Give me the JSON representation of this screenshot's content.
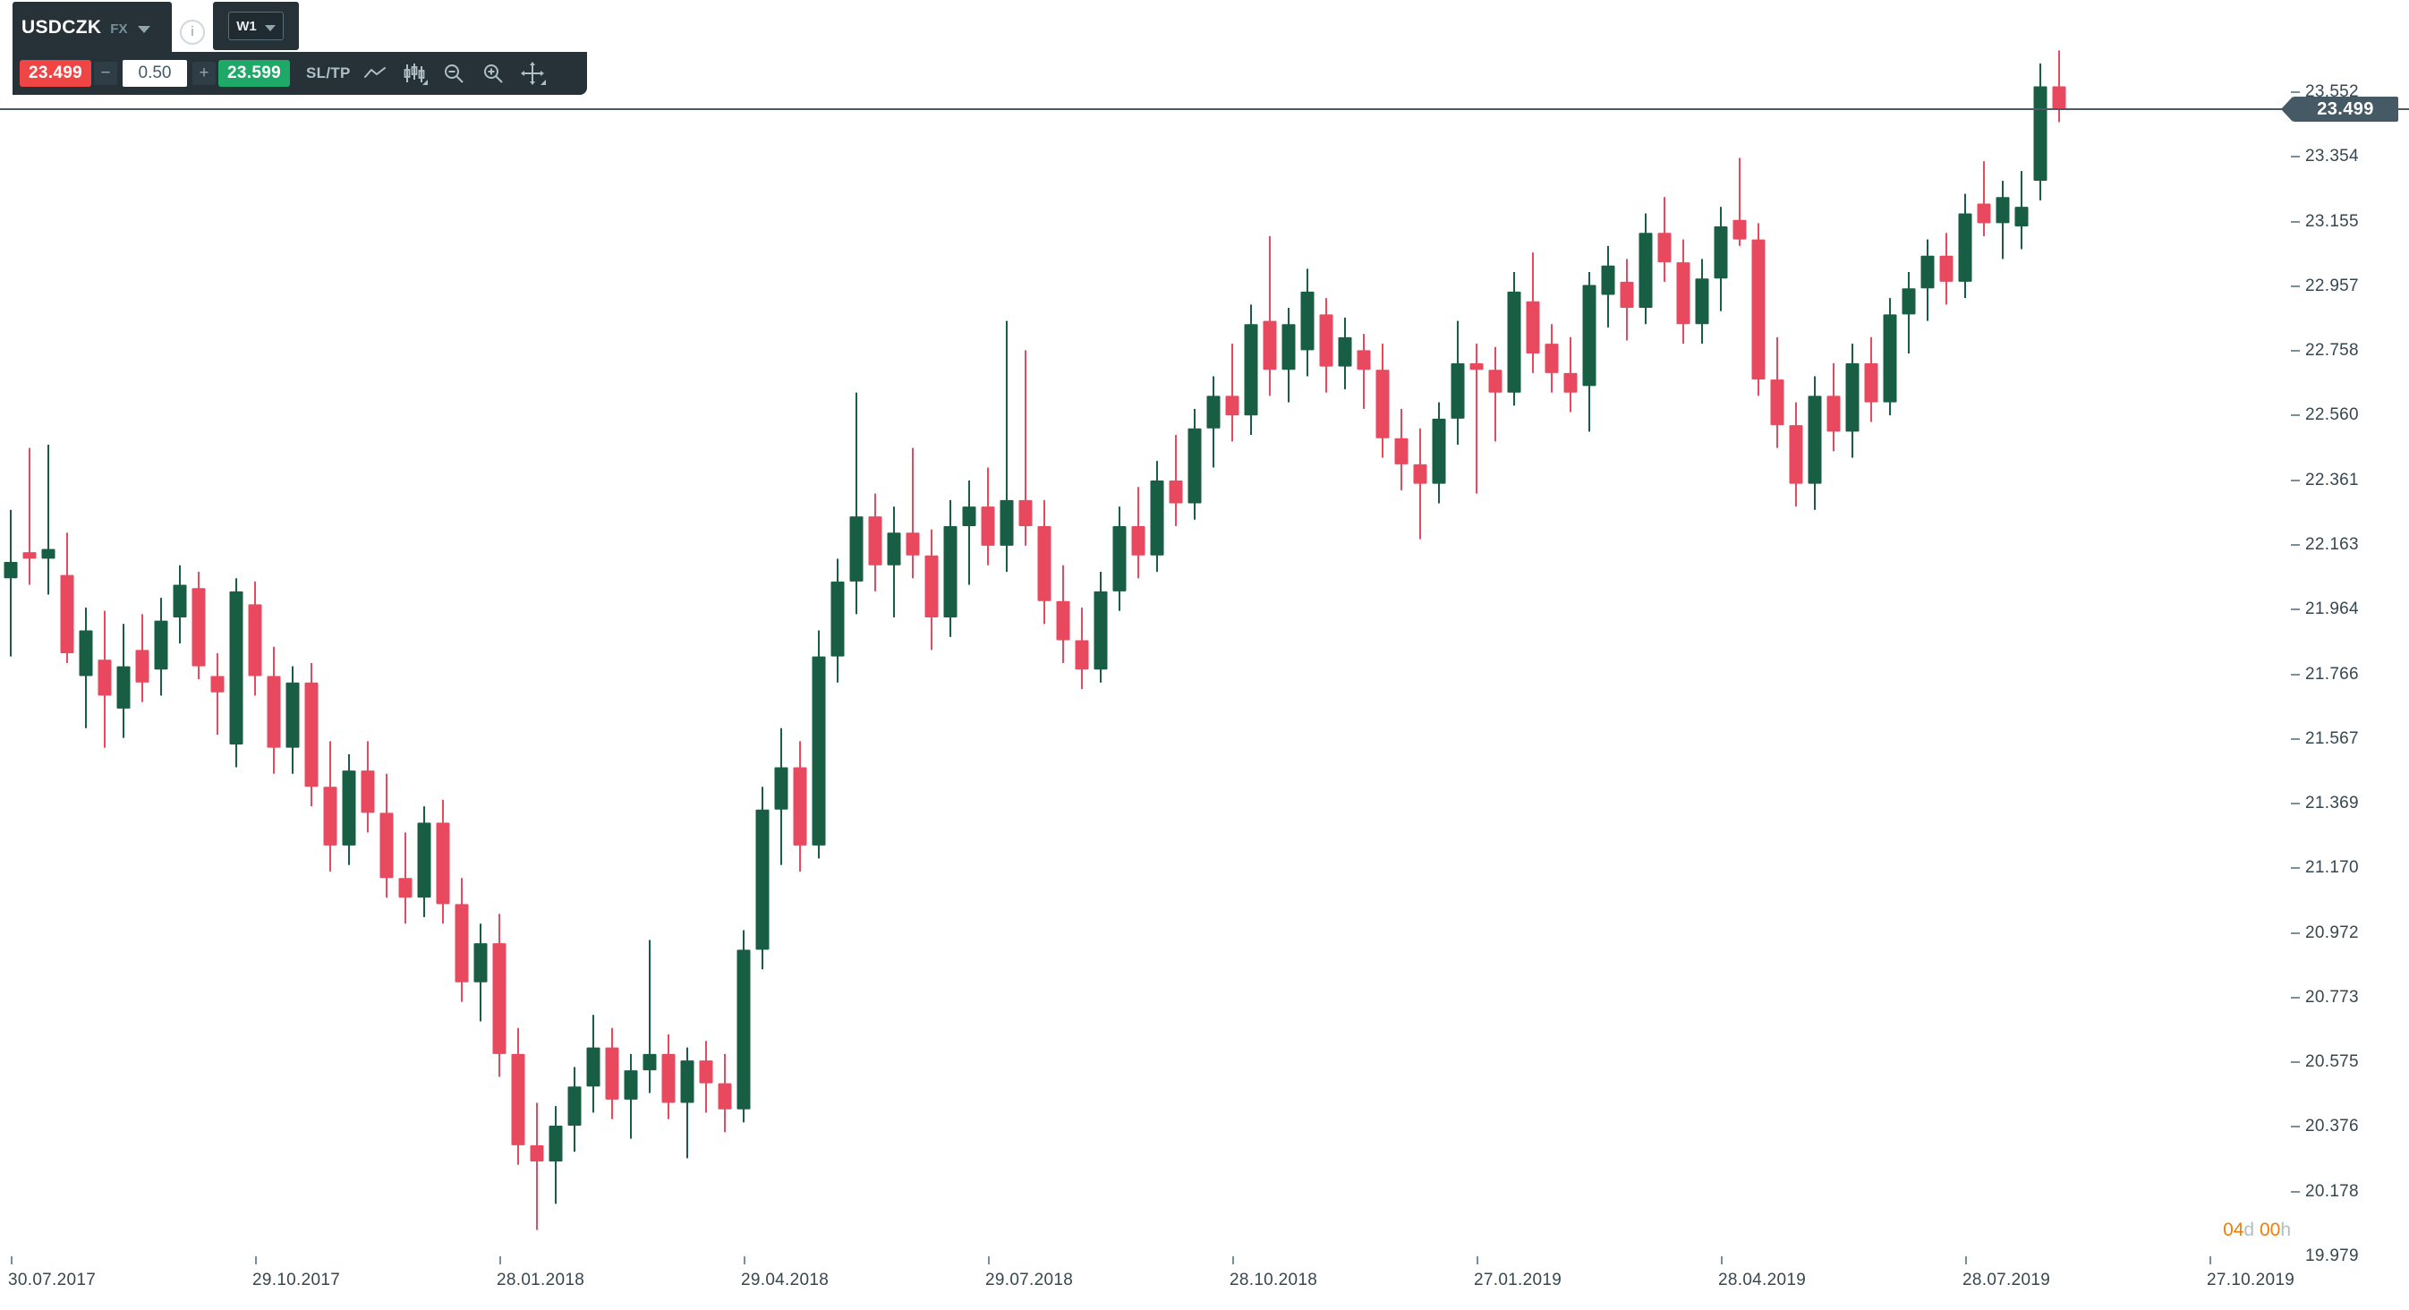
{
  "header": {
    "symbol": "USDCZK",
    "market_label": "FX",
    "timeframe": "W1",
    "sell_price": "23.499",
    "minus_label": "−",
    "volume": "0.50",
    "plus_label": "+",
    "buy_price": "23.599",
    "sltp_label": "SL/TP",
    "info_label": "i"
  },
  "price_marker": {
    "value": "23.499"
  },
  "countdown": {
    "days_value": "04",
    "days_unit": "d",
    "hours_value": "00",
    "hours_unit": "h"
  },
  "colors": {
    "bull": "#175e44",
    "bear": "#e8495f",
    "sell_button": "#ef4545",
    "buy_button": "#1fa968",
    "panel": "#263238",
    "price_line": "#4c5b66",
    "badge": "#455a64",
    "axis_text": "#37474f",
    "countdown_orange": "#f57c00"
  },
  "chart_data": {
    "type": "candlestick",
    "title": "USDCZK weekly candlestick chart",
    "symbol": "USDCZK",
    "timeframe": "W1",
    "current_price": 23.499,
    "y_axis": {
      "top_value": 23.552,
      "bottom_value": 19.979,
      "tick_step": 0.1985
    },
    "y_tick_labels": [
      "23.552",
      "23.354",
      "23.155",
      "22.957",
      "22.758",
      "22.560",
      "22.361",
      "22.163",
      "21.964",
      "21.766",
      "21.567",
      "21.369",
      "21.170",
      "20.972",
      "20.773",
      "20.575",
      "20.376",
      "20.178",
      "19.979"
    ],
    "x_tick_labels": [
      "30.07.2017",
      "29.10.2017",
      "28.01.2018",
      "29.04.2018",
      "29.07.2018",
      "28.10.2018",
      "27.01.2019",
      "28.04.2019",
      "28.07.2019",
      "27.10.2019"
    ],
    "weeks_per_x_tick": 13,
    "candles_ohlc": [
      [
        22.06,
        22.27,
        21.82,
        22.11
      ],
      [
        22.14,
        22.46,
        22.04,
        22.12
      ],
      [
        22.12,
        22.47,
        22.01,
        22.15
      ],
      [
        22.07,
        22.2,
        21.8,
        21.83
      ],
      [
        21.76,
        21.97,
        21.6,
        21.9
      ],
      [
        21.81,
        21.96,
        21.54,
        21.7
      ],
      [
        21.66,
        21.92,
        21.57,
        21.79
      ],
      [
        21.84,
        21.95,
        21.68,
        21.74
      ],
      [
        21.78,
        22.0,
        21.7,
        21.93
      ],
      [
        21.94,
        22.1,
        21.86,
        22.04
      ],
      [
        22.03,
        22.08,
        21.75,
        21.79
      ],
      [
        21.76,
        21.83,
        21.58,
        21.71
      ],
      [
        21.55,
        22.06,
        21.48,
        22.02
      ],
      [
        21.98,
        22.05,
        21.7,
        21.76
      ],
      [
        21.76,
        21.85,
        21.46,
        21.54
      ],
      [
        21.54,
        21.79,
        21.46,
        21.74
      ],
      [
        21.74,
        21.8,
        21.36,
        21.42
      ],
      [
        21.42,
        21.56,
        21.16,
        21.24
      ],
      [
        21.24,
        21.52,
        21.18,
        21.47
      ],
      [
        21.47,
        21.56,
        21.28,
        21.34
      ],
      [
        21.34,
        21.46,
        21.08,
        21.14
      ],
      [
        21.14,
        21.28,
        21.0,
        21.08
      ],
      [
        21.08,
        21.36,
        21.02,
        21.31
      ],
      [
        21.31,
        21.38,
        21.0,
        21.06
      ],
      [
        21.06,
        21.14,
        20.76,
        20.82
      ],
      [
        20.82,
        21.0,
        20.7,
        20.94
      ],
      [
        20.94,
        21.03,
        20.53,
        20.6
      ],
      [
        20.6,
        20.68,
        20.26,
        20.32
      ],
      [
        20.32,
        20.45,
        20.06,
        20.27
      ],
      [
        20.27,
        20.44,
        20.14,
        20.38
      ],
      [
        20.38,
        20.56,
        20.3,
        20.5
      ],
      [
        20.5,
        20.72,
        20.42,
        20.62
      ],
      [
        20.62,
        20.68,
        20.4,
        20.46
      ],
      [
        20.46,
        20.6,
        20.34,
        20.55
      ],
      [
        20.55,
        20.95,
        20.48,
        20.6
      ],
      [
        20.6,
        20.66,
        20.4,
        20.45
      ],
      [
        20.45,
        20.62,
        20.28,
        20.58
      ],
      [
        20.58,
        20.64,
        20.42,
        20.51
      ],
      [
        20.51,
        20.6,
        20.36,
        20.43
      ],
      [
        20.43,
        20.98,
        20.39,
        20.92
      ],
      [
        20.92,
        21.42,
        20.86,
        21.35
      ],
      [
        21.35,
        21.6,
        21.18,
        21.48
      ],
      [
        21.48,
        21.56,
        21.16,
        21.24
      ],
      [
        21.24,
        21.9,
        21.2,
        21.82
      ],
      [
        21.82,
        22.12,
        21.74,
        22.05
      ],
      [
        22.05,
        22.63,
        21.95,
        22.25
      ],
      [
        22.25,
        22.32,
        22.02,
        22.1
      ],
      [
        22.1,
        22.28,
        21.94,
        22.2
      ],
      [
        22.2,
        22.46,
        22.06,
        22.13
      ],
      [
        22.13,
        22.21,
        21.84,
        21.94
      ],
      [
        21.94,
        22.3,
        21.88,
        22.22
      ],
      [
        22.22,
        22.36,
        22.04,
        22.28
      ],
      [
        22.28,
        22.4,
        22.1,
        22.16
      ],
      [
        22.16,
        22.85,
        22.08,
        22.3
      ],
      [
        22.3,
        22.76,
        22.16,
        22.22
      ],
      [
        22.22,
        22.3,
        21.92,
        21.99
      ],
      [
        21.99,
        22.1,
        21.8,
        21.87
      ],
      [
        21.87,
        21.97,
        21.72,
        21.78
      ],
      [
        21.78,
        22.08,
        21.74,
        22.02
      ],
      [
        22.02,
        22.28,
        21.96,
        22.22
      ],
      [
        22.22,
        22.34,
        22.06,
        22.13
      ],
      [
        22.13,
        22.42,
        22.08,
        22.36
      ],
      [
        22.36,
        22.5,
        22.22,
        22.29
      ],
      [
        22.29,
        22.58,
        22.24,
        22.52
      ],
      [
        22.52,
        22.68,
        22.4,
        22.62
      ],
      [
        22.62,
        22.78,
        22.48,
        22.56
      ],
      [
        22.56,
        22.9,
        22.5,
        22.84
      ],
      [
        22.85,
        23.11,
        22.62,
        22.7
      ],
      [
        22.7,
        22.89,
        22.6,
        22.84
      ],
      [
        22.76,
        23.01,
        22.68,
        22.94
      ],
      [
        22.87,
        22.92,
        22.63,
        22.71
      ],
      [
        22.71,
        22.86,
        22.64,
        22.8
      ],
      [
        22.76,
        22.81,
        22.58,
        22.7
      ],
      [
        22.7,
        22.78,
        22.43,
        22.49
      ],
      [
        22.49,
        22.58,
        22.33,
        22.41
      ],
      [
        22.41,
        22.52,
        22.18,
        22.35
      ],
      [
        22.35,
        22.6,
        22.29,
        22.55
      ],
      [
        22.55,
        22.85,
        22.47,
        22.72
      ],
      [
        22.72,
        22.78,
        22.32,
        22.7
      ],
      [
        22.7,
        22.77,
        22.48,
        22.63
      ],
      [
        22.63,
        23.0,
        22.59,
        22.94
      ],
      [
        22.91,
        23.06,
        22.69,
        22.75
      ],
      [
        22.78,
        22.84,
        22.63,
        22.69
      ],
      [
        22.69,
        22.8,
        22.57,
        22.63
      ],
      [
        22.65,
        23.0,
        22.51,
        22.96
      ],
      [
        22.93,
        23.08,
        22.83,
        23.02
      ],
      [
        22.97,
        23.04,
        22.79,
        22.89
      ],
      [
        22.89,
        23.18,
        22.84,
        23.12
      ],
      [
        23.12,
        23.23,
        22.97,
        23.03
      ],
      [
        23.03,
        23.1,
        22.78,
        22.84
      ],
      [
        22.84,
        23.04,
        22.78,
        22.98
      ],
      [
        22.98,
        23.2,
        22.88,
        23.14
      ],
      [
        23.16,
        23.35,
        23.08,
        23.1
      ],
      [
        23.1,
        23.15,
        22.62,
        22.67
      ],
      [
        22.67,
        22.8,
        22.46,
        22.53
      ],
      [
        22.53,
        22.6,
        22.28,
        22.35
      ],
      [
        22.35,
        22.68,
        22.27,
        22.62
      ],
      [
        22.62,
        22.72,
        22.45,
        22.51
      ],
      [
        22.51,
        22.78,
        22.43,
        22.72
      ],
      [
        22.72,
        22.8,
        22.54,
        22.6
      ],
      [
        22.6,
        22.92,
        22.56,
        22.87
      ],
      [
        22.87,
        23.0,
        22.75,
        22.95
      ],
      [
        22.95,
        23.1,
        22.85,
        23.05
      ],
      [
        23.05,
        23.12,
        22.9,
        22.97
      ],
      [
        22.97,
        23.24,
        22.92,
        23.18
      ],
      [
        23.21,
        23.34,
        23.11,
        23.15
      ],
      [
        23.15,
        23.28,
        23.04,
        23.23
      ],
      [
        23.14,
        23.31,
        23.07,
        23.2
      ],
      [
        23.28,
        23.64,
        23.22,
        23.57
      ],
      [
        23.57,
        23.68,
        23.46,
        23.5
      ]
    ]
  }
}
